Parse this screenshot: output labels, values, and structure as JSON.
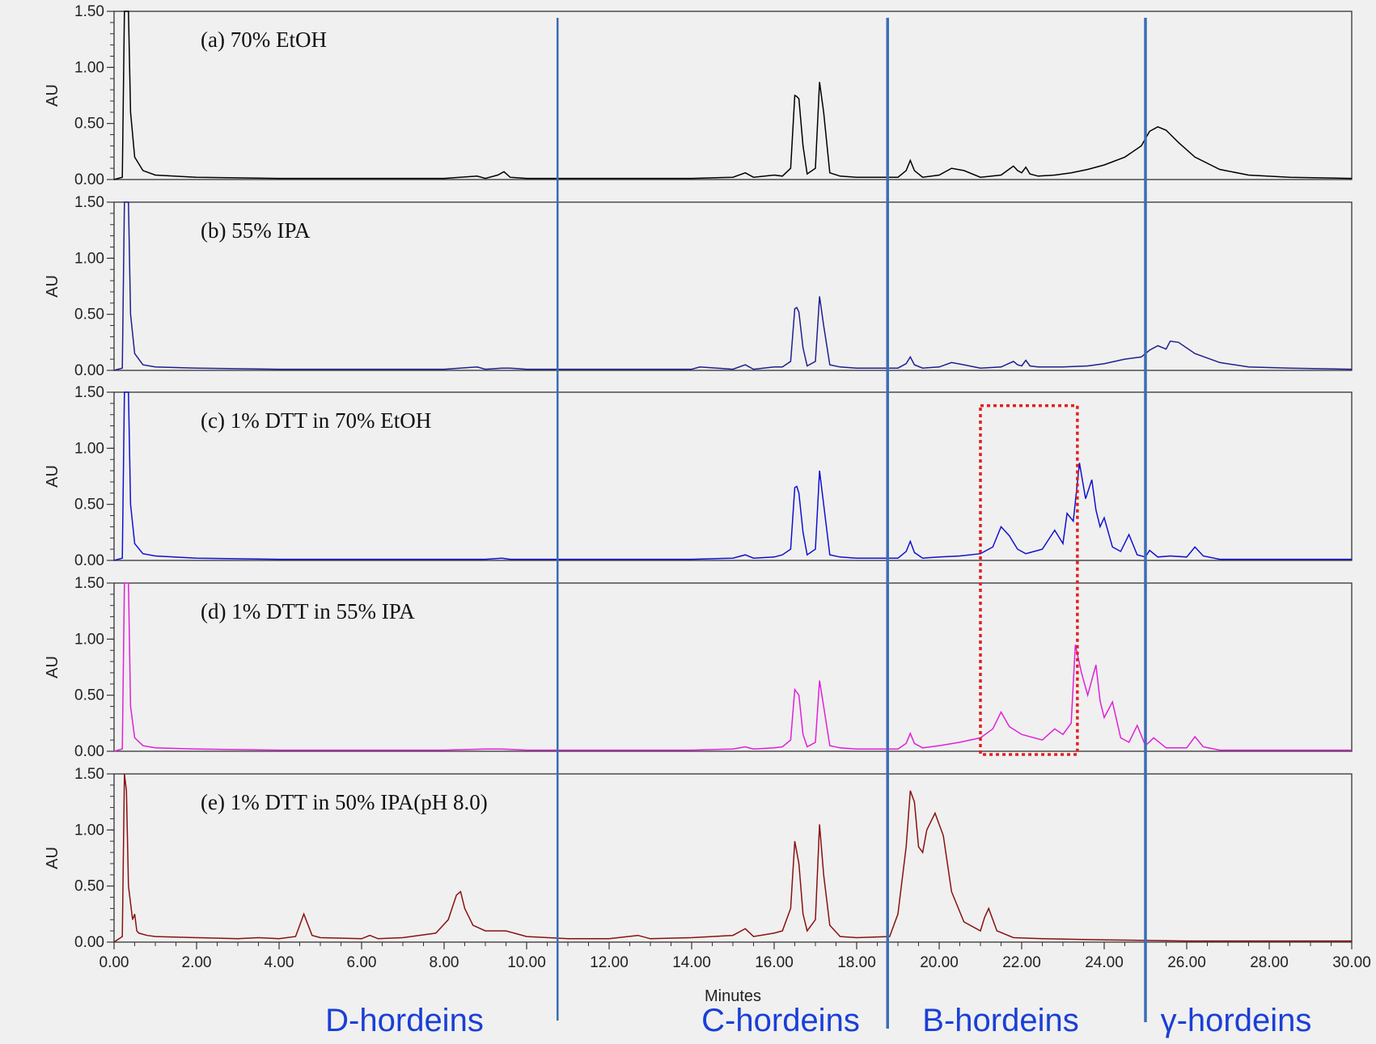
{
  "chart_data": [
    {
      "type": "line",
      "title": "(a) 70% EtOH",
      "ylabel": "AU",
      "xlim": [
        0,
        30
      ],
      "ylim": [
        0,
        1.5
      ],
      "color": "#000000",
      "series": [
        {
          "x": [
            0,
            0.2,
            0.25,
            0.3,
            0.35,
            0.4,
            0.5,
            0.7,
            1.0,
            2.0,
            4.0,
            8.0,
            8.8,
            9.0,
            9.3,
            9.45,
            9.6,
            10.0,
            12.0,
            14.0,
            15.0,
            15.3,
            15.5,
            16.0,
            16.2,
            16.4,
            16.5,
            16.55,
            16.6,
            16.7,
            16.8,
            17.0,
            17.1,
            17.2,
            17.35,
            17.6,
            18.0,
            19.0,
            19.2,
            19.3,
            19.4,
            19.6,
            20.0,
            20.3,
            20.6,
            21.0,
            21.5,
            21.8,
            21.9,
            22.0,
            22.1,
            22.2,
            22.4,
            22.8,
            23.2,
            23.6,
            24.0,
            24.5,
            24.9,
            25.1,
            25.3,
            25.5,
            25.8,
            26.2,
            26.8,
            27.5,
            28.5,
            30.0
          ],
          "y": [
            0,
            0.02,
            1.5,
            1.5,
            1.5,
            0.6,
            0.2,
            0.08,
            0.04,
            0.02,
            0.01,
            0.01,
            0.03,
            0.01,
            0.04,
            0.07,
            0.02,
            0.01,
            0.01,
            0.01,
            0.02,
            0.06,
            0.02,
            0.04,
            0.03,
            0.1,
            0.75,
            0.74,
            0.72,
            0.3,
            0.05,
            0.1,
            0.87,
            0.6,
            0.06,
            0.03,
            0.02,
            0.02,
            0.08,
            0.17,
            0.08,
            0.02,
            0.04,
            0.1,
            0.08,
            0.02,
            0.04,
            0.12,
            0.08,
            0.06,
            0.11,
            0.05,
            0.03,
            0.04,
            0.06,
            0.09,
            0.13,
            0.2,
            0.3,
            0.43,
            0.47,
            0.44,
            0.33,
            0.2,
            0.09,
            0.04,
            0.02,
            0.01
          ]
        }
      ]
    },
    {
      "type": "line",
      "title": "(b) 55% IPA",
      "ylabel": "AU",
      "xlim": [
        0,
        30
      ],
      "ylim": [
        0,
        1.5
      ],
      "color": "#1f1f8f",
      "series": [
        {
          "x": [
            0,
            0.2,
            0.25,
            0.3,
            0.35,
            0.4,
            0.5,
            0.7,
            1.0,
            2.0,
            4.0,
            8.0,
            8.8,
            9.0,
            9.4,
            9.6,
            10.0,
            12.0,
            14.0,
            14.2,
            15.0,
            15.3,
            15.5,
            16.0,
            16.2,
            16.4,
            16.5,
            16.55,
            16.6,
            16.7,
            16.8,
            17.0,
            17.1,
            17.2,
            17.35,
            17.6,
            18.0,
            19.0,
            19.2,
            19.3,
            19.4,
            19.6,
            20.0,
            20.3,
            20.6,
            21.0,
            21.5,
            21.8,
            21.9,
            22.0,
            22.1,
            22.2,
            22.4,
            23.0,
            23.6,
            24.0,
            24.5,
            24.9,
            25.1,
            25.3,
            25.5,
            25.6,
            25.8,
            26.2,
            26.8,
            27.5,
            28.5,
            30.0
          ],
          "y": [
            0,
            0.02,
            1.5,
            1.5,
            1.5,
            0.5,
            0.15,
            0.05,
            0.03,
            0.02,
            0.01,
            0.01,
            0.03,
            0.01,
            0.02,
            0.02,
            0.01,
            0.01,
            0.01,
            0.03,
            0.01,
            0.05,
            0.01,
            0.03,
            0.03,
            0.08,
            0.55,
            0.56,
            0.52,
            0.2,
            0.04,
            0.08,
            0.66,
            0.4,
            0.05,
            0.03,
            0.02,
            0.02,
            0.06,
            0.12,
            0.05,
            0.02,
            0.03,
            0.07,
            0.05,
            0.02,
            0.03,
            0.08,
            0.05,
            0.04,
            0.09,
            0.04,
            0.03,
            0.03,
            0.04,
            0.06,
            0.1,
            0.12,
            0.18,
            0.22,
            0.19,
            0.26,
            0.25,
            0.15,
            0.07,
            0.03,
            0.02,
            0.01
          ]
        }
      ]
    },
    {
      "type": "line",
      "title": "(c) 1% DTT  in 70% EtOH",
      "ylabel": "AU",
      "xlim": [
        0,
        30
      ],
      "ylim": [
        0,
        1.5
      ],
      "color": "#1010d0",
      "series": [
        {
          "x": [
            0,
            0.2,
            0.25,
            0.3,
            0.35,
            0.4,
            0.5,
            0.7,
            1.0,
            2.0,
            4.0,
            8.0,
            9.0,
            9.4,
            9.6,
            10.0,
            12.0,
            14.0,
            15.0,
            15.3,
            15.5,
            16.0,
            16.2,
            16.4,
            16.5,
            16.55,
            16.6,
            16.7,
            16.8,
            17.0,
            17.1,
            17.2,
            17.35,
            17.6,
            18.0,
            19.0,
            19.2,
            19.3,
            19.4,
            19.6,
            20.0,
            20.5,
            21.0,
            21.3,
            21.5,
            21.7,
            21.9,
            22.1,
            22.5,
            22.8,
            23.0,
            23.1,
            23.25,
            23.4,
            23.55,
            23.7,
            23.8,
            23.9,
            24.0,
            24.2,
            24.4,
            24.6,
            24.8,
            25.0,
            25.1,
            25.3,
            25.6,
            26.0,
            26.2,
            26.4,
            26.8,
            27.5,
            28.5,
            30.0
          ],
          "y": [
            0,
            0.02,
            1.5,
            1.5,
            1.5,
            0.5,
            0.15,
            0.06,
            0.04,
            0.02,
            0.01,
            0.01,
            0.01,
            0.02,
            0.01,
            0.01,
            0.01,
            0.01,
            0.02,
            0.05,
            0.02,
            0.03,
            0.05,
            0.1,
            0.65,
            0.66,
            0.6,
            0.25,
            0.05,
            0.1,
            0.8,
            0.5,
            0.05,
            0.03,
            0.02,
            0.02,
            0.08,
            0.17,
            0.07,
            0.02,
            0.03,
            0.04,
            0.06,
            0.12,
            0.3,
            0.22,
            0.1,
            0.06,
            0.1,
            0.27,
            0.15,
            0.42,
            0.35,
            0.87,
            0.55,
            0.72,
            0.45,
            0.3,
            0.38,
            0.12,
            0.08,
            0.23,
            0.05,
            0.03,
            0.09,
            0.03,
            0.04,
            0.03,
            0.12,
            0.04,
            0.01,
            0.01,
            0.01,
            0.01
          ]
        }
      ]
    },
    {
      "type": "line",
      "title": "(d) 1% DTT  in  55% IPA",
      "ylabel": "AU",
      "xlim": [
        0,
        30
      ],
      "ylim": [
        0,
        1.5
      ],
      "color": "#e020d8",
      "series": [
        {
          "x": [
            0,
            0.2,
            0.25,
            0.3,
            0.35,
            0.4,
            0.5,
            0.7,
            1.0,
            2.0,
            4.0,
            8.0,
            9.0,
            9.4,
            10.0,
            12.0,
            14.0,
            15.0,
            15.3,
            15.5,
            16.0,
            16.2,
            16.4,
            16.5,
            16.6,
            16.7,
            16.8,
            17.0,
            17.1,
            17.2,
            17.35,
            17.6,
            18.0,
            19.0,
            19.2,
            19.3,
            19.4,
            19.6,
            20.0,
            20.5,
            21.0,
            21.3,
            21.5,
            21.7,
            22.0,
            22.5,
            22.8,
            23.0,
            23.2,
            23.3,
            23.45,
            23.6,
            23.8,
            23.9,
            24.0,
            24.2,
            24.4,
            24.6,
            24.8,
            25.0,
            25.2,
            25.5,
            26.0,
            26.2,
            26.4,
            26.8,
            27.5,
            28.5,
            30.0
          ],
          "y": [
            0,
            0.02,
            1.5,
            1.5,
            1.5,
            0.4,
            0.12,
            0.05,
            0.03,
            0.02,
            0.01,
            0.01,
            0.02,
            0.02,
            0.01,
            0.01,
            0.01,
            0.02,
            0.04,
            0.02,
            0.03,
            0.04,
            0.1,
            0.55,
            0.5,
            0.15,
            0.04,
            0.08,
            0.63,
            0.4,
            0.05,
            0.03,
            0.02,
            0.02,
            0.07,
            0.16,
            0.07,
            0.03,
            0.05,
            0.08,
            0.12,
            0.2,
            0.35,
            0.22,
            0.15,
            0.1,
            0.2,
            0.15,
            0.25,
            0.95,
            0.7,
            0.5,
            0.77,
            0.45,
            0.3,
            0.44,
            0.12,
            0.08,
            0.23,
            0.05,
            0.12,
            0.03,
            0.03,
            0.13,
            0.04,
            0.01,
            0.01,
            0.01,
            0.01
          ]
        }
      ]
    },
    {
      "type": "line",
      "title": "(e) 1% DTT in 50% IPA(pH 8.0)",
      "ylabel": "AU",
      "xlabel": "Minutes",
      "xlim": [
        0,
        30
      ],
      "ylim": [
        0,
        1.5
      ],
      "color": "#8a1010",
      "x_ticks": [
        "0.00",
        "2.00",
        "4.00",
        "6.00",
        "8.00",
        "10.00",
        "12.00",
        "14.00",
        "16.00",
        "18.00",
        "20.00",
        "22.00",
        "24.00",
        "26.00",
        "28.00",
        "30.00"
      ],
      "series": [
        {
          "x": [
            0,
            0.2,
            0.25,
            0.3,
            0.35,
            0.45,
            0.5,
            0.55,
            0.6,
            0.8,
            1.0,
            2.0,
            3.0,
            3.5,
            4.0,
            4.4,
            4.6,
            4.8,
            5.0,
            6.0,
            6.2,
            6.4,
            7.0,
            7.8,
            8.1,
            8.3,
            8.4,
            8.5,
            8.7,
            9.0,
            9.5,
            10.0,
            11.0,
            12.0,
            12.7,
            13.0,
            14.0,
            15.0,
            15.3,
            15.5,
            16.0,
            16.2,
            16.4,
            16.5,
            16.6,
            16.7,
            16.8,
            17.0,
            17.1,
            17.2,
            17.35,
            17.6,
            18.0,
            18.8,
            19.0,
            19.2,
            19.3,
            19.4,
            19.5,
            19.6,
            19.7,
            19.9,
            20.1,
            20.3,
            20.6,
            21.0,
            21.1,
            21.2,
            21.4,
            21.8,
            22.5,
            24.0,
            26.0,
            28.0,
            30.0
          ],
          "y": [
            0,
            0.05,
            1.5,
            1.35,
            0.5,
            0.2,
            0.25,
            0.1,
            0.08,
            0.06,
            0.05,
            0.04,
            0.03,
            0.04,
            0.03,
            0.05,
            0.25,
            0.06,
            0.04,
            0.03,
            0.06,
            0.03,
            0.04,
            0.08,
            0.2,
            0.42,
            0.45,
            0.3,
            0.15,
            0.1,
            0.1,
            0.05,
            0.03,
            0.03,
            0.06,
            0.03,
            0.04,
            0.06,
            0.12,
            0.05,
            0.08,
            0.1,
            0.3,
            0.9,
            0.7,
            0.25,
            0.1,
            0.2,
            1.05,
            0.6,
            0.15,
            0.05,
            0.04,
            0.05,
            0.25,
            0.85,
            1.35,
            1.25,
            0.85,
            0.8,
            1.0,
            1.15,
            0.95,
            0.45,
            0.18,
            0.1,
            0.22,
            0.3,
            0.1,
            0.04,
            0.03,
            0.02,
            0.01,
            0.01,
            0.01
          ]
        }
      ]
    }
  ],
  "y_ticks": [
    "0.00",
    "0.50",
    "1.00",
    "1.50"
  ],
  "regions": [
    "D-hordeins",
    "C-hordeins",
    "B-hordeins",
    "γ-hordeins"
  ],
  "boundary_lines_min": [
    10.75,
    18.75,
    25.0
  ],
  "highlight_box": {
    "xmin": 21.0,
    "xmax": 23.35,
    "color": "#e02020",
    "panels": [
      "c",
      "d"
    ]
  },
  "colors": {
    "boundary_line": "#3b6db5",
    "region_text": "#1a3fd6",
    "background": "#f0f0f0"
  }
}
